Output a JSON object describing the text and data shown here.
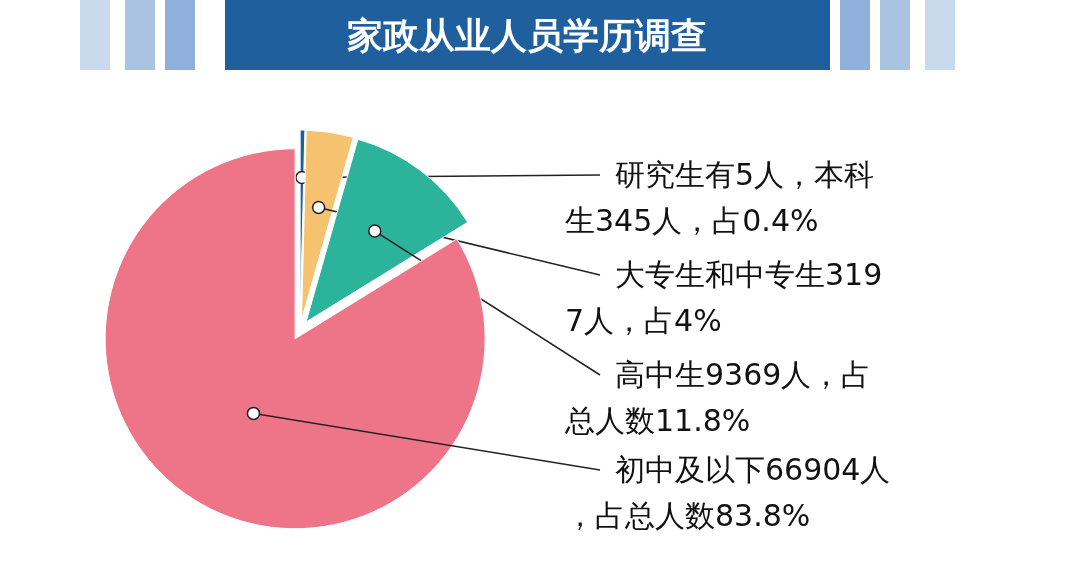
{
  "chart_data": {
    "type": "pie",
    "title": "家政从业人员学历调查",
    "categories": [
      "研究生有5人，本科生345人，占0.4%",
      "大专生和中专生3197人，占4%",
      "高中生9369人，占总人数11.8%",
      "初中及以下66904人，占总人数83.8%"
    ],
    "values": [
      0.4,
      4,
      11.8,
      83.8
    ],
    "colors": [
      "#1f5f9e",
      "#f5c270",
      "#2cb39c",
      "#ee7488"
    ]
  }
}
